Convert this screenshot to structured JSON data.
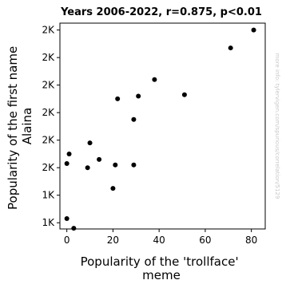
{
  "chart_data": {
    "type": "scatter",
    "title": "Years 2006-2022, r=0.875, p<0.01",
    "xlabel": [
      "Popularity of the 'trollface'",
      "meme"
    ],
    "ylabel": [
      "Popularity of the first name",
      "Alaina"
    ],
    "xlim": [
      -3,
      86
    ],
    "ylim": [
      1050,
      1000000
    ],
    "xticks": [
      0,
      20,
      40,
      60,
      80
    ],
    "xtick_labels": [
      "0",
      "20",
      "40",
      "60",
      "80"
    ],
    "yticks": [
      1100,
      1300,
      1500,
      1700,
      1900,
      2100,
      2300,
      2500
    ],
    "ytick_labels": [
      "1K",
      "1K",
      "2K",
      "2K",
      "2K",
      "2K",
      "2K",
      "2K"
    ],
    "ylim_actual": [
      1055,
      2550
    ],
    "points": [
      {
        "x": 81,
        "y": 2500
      },
      {
        "x": 71,
        "y": 2370
      },
      {
        "x": 51,
        "y": 2030
      },
      {
        "x": 38,
        "y": 2140
      },
      {
        "x": 31,
        "y": 2020
      },
      {
        "x": 22,
        "y": 2000
      },
      {
        "x": 29,
        "y": 1850
      },
      {
        "x": 10,
        "y": 1680
      },
      {
        "x": 1,
        "y": 1600
      },
      {
        "x": 14,
        "y": 1560
      },
      {
        "x": 0,
        "y": 1530
      },
      {
        "x": 21,
        "y": 1520
      },
      {
        "x": 29,
        "y": 1520
      },
      {
        "x": 9,
        "y": 1500
      },
      {
        "x": 20,
        "y": 1350
      },
      {
        "x": 0,
        "y": 1130
      },
      {
        "x": 3,
        "y": 1060
      }
    ],
    "grid": false,
    "marker_color": "#000000"
  },
  "watermark": "more info: tylervigen.com/spurious/correlation/5129"
}
